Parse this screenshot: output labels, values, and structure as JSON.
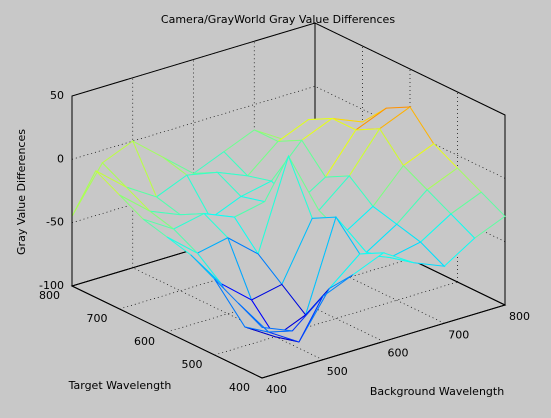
{
  "chart_data": {
    "type": "mesh",
    "title": "Camera/GrayWorld Gray Value Differences",
    "xlabel": "Background Wavelength",
    "ylabel": "Target Wavelength",
    "zlabel": "Gray Value Differences",
    "x": [
      400,
      450,
      500,
      550,
      600,
      650,
      700,
      750,
      800
    ],
    "y": [
      400,
      450,
      500,
      550,
      600,
      650,
      700,
      750,
      800
    ],
    "z": [
      [
        -60,
        -70,
        -50,
        -40,
        -30,
        -45,
        -55,
        -40,
        -30
      ],
      [
        -50,
        -80,
        -95,
        -60,
        -40,
        -50,
        -45,
        -30,
        -20
      ],
      [
        -40,
        -85,
        -100,
        -90,
        -20,
        -55,
        -40,
        -20,
        -10
      ],
      [
        -30,
        -60,
        -80,
        -75,
        -30,
        -50,
        -35,
        -10,
        0
      ],
      [
        -25,
        -45,
        -40,
        -60,
        10,
        -40,
        -20,
        10,
        20
      ],
      [
        -20,
        -35,
        -30,
        -40,
        -35,
        -45,
        -30,
        0,
        10
      ],
      [
        -10,
        -30,
        -40,
        -50,
        -40,
        -35,
        -10,
        0,
        -10
      ],
      [
        0,
        -20,
        -35,
        -25,
        -30,
        -40,
        -20,
        -10,
        -20
      ],
      [
        -45,
        -10,
        0,
        -20,
        -40,
        -30,
        -20,
        -35,
        -40
      ]
    ],
    "xlim": [
      400,
      800
    ],
    "ylim": [
      400,
      800
    ],
    "zlim": [
      -100,
      50
    ],
    "xticks": [
      400,
      500,
      600,
      700,
      800
    ],
    "yticks": [
      400,
      500,
      600,
      700,
      800
    ],
    "zticks": [
      -100,
      -50,
      0,
      50
    ],
    "grid": true,
    "colormap": "jet"
  }
}
